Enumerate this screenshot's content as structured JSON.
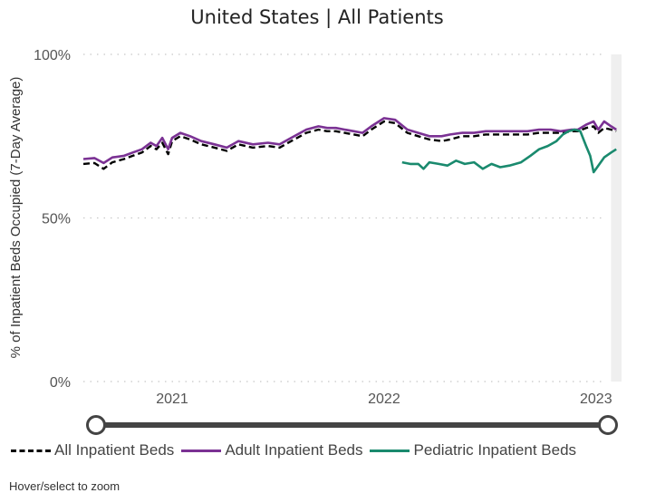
{
  "header": {
    "title": "United States | All Patients"
  },
  "chart_data": {
    "type": "line",
    "title": "United States | All Patients",
    "ylabel": "% of Inpatient Beds Occupied (7-Day Average)",
    "xlabel": "",
    "ylim": [
      0,
      100
    ],
    "xlim": [
      "2020-08-01",
      "2023-02-14"
    ],
    "y_ticks": [
      "0%",
      "50%",
      "100%"
    ],
    "x_ticks": [
      {
        "label": "2021",
        "date": "2021-01-01"
      },
      {
        "label": "2022",
        "date": "2022-01-01"
      },
      {
        "label": "2023",
        "date": "2023-01-01"
      }
    ],
    "grid": "horizontal dotted",
    "shaded_region": {
      "from": "2023-01-27",
      "to": "2023-02-14",
      "color": "#efefef"
    },
    "series": [
      {
        "name": "All Inpatient Beds",
        "color": "#000000",
        "style": "dashed",
        "points": [
          [
            "2020-08-01",
            66.5
          ],
          [
            "2020-08-20",
            66.8
          ],
          [
            "2020-09-05",
            65
          ],
          [
            "2020-09-20",
            67
          ],
          [
            "2020-10-10",
            68
          ],
          [
            "2020-10-25",
            69
          ],
          [
            "2020-11-10",
            70
          ],
          [
            "2020-11-25",
            72
          ],
          [
            "2020-12-05",
            71
          ],
          [
            "2020-12-15",
            73
          ],
          [
            "2020-12-25",
            69.5
          ],
          [
            "2021-01-01",
            73.5
          ],
          [
            "2021-01-15",
            75
          ],
          [
            "2021-02-01",
            74
          ],
          [
            "2021-02-20",
            72.5
          ],
          [
            "2021-03-15",
            71.5
          ],
          [
            "2021-04-05",
            70.5
          ],
          [
            "2021-04-25",
            72.5
          ],
          [
            "2021-05-20",
            71.5
          ],
          [
            "2021-06-15",
            72
          ],
          [
            "2021-07-05",
            71.5
          ],
          [
            "2021-07-25",
            73.5
          ],
          [
            "2021-08-20",
            76
          ],
          [
            "2021-09-10",
            77
          ],
          [
            "2021-09-25",
            76.5
          ],
          [
            "2021-10-10",
            76.5
          ],
          [
            "2021-10-25",
            76
          ],
          [
            "2021-11-10",
            75.5
          ],
          [
            "2021-11-25",
            75
          ],
          [
            "2021-12-10",
            77
          ],
          [
            "2022-01-01",
            79.5
          ],
          [
            "2022-01-20",
            79
          ],
          [
            "2022-02-10",
            76
          ],
          [
            "2022-03-01",
            75
          ],
          [
            "2022-03-20",
            74
          ],
          [
            "2022-04-10",
            73.5
          ],
          [
            "2022-04-25",
            74
          ],
          [
            "2022-05-15",
            75
          ],
          [
            "2022-06-05",
            75
          ],
          [
            "2022-06-25",
            75.5
          ],
          [
            "2022-07-20",
            75.5
          ],
          [
            "2022-08-15",
            75.5
          ],
          [
            "2022-09-05",
            75.5
          ],
          [
            "2022-09-25",
            76
          ],
          [
            "2022-10-15",
            76
          ],
          [
            "2022-11-01",
            76
          ],
          [
            "2022-11-20",
            76.5
          ],
          [
            "2022-12-01",
            76.5
          ],
          [
            "2022-12-15",
            77.5
          ],
          [
            "2022-12-28",
            78
          ],
          [
            "2023-01-05",
            76
          ],
          [
            "2023-01-15",
            77.5
          ],
          [
            "2023-01-27",
            77
          ],
          [
            "2023-02-05",
            76.5
          ]
        ]
      },
      {
        "name": "Adult Inpatient Beds",
        "color": "#7b3294",
        "style": "solid",
        "points": [
          [
            "2020-08-01",
            68
          ],
          [
            "2020-08-20",
            68.3
          ],
          [
            "2020-09-05",
            66.8
          ],
          [
            "2020-09-20",
            68.5
          ],
          [
            "2020-10-10",
            69
          ],
          [
            "2020-10-25",
            70
          ],
          [
            "2020-11-10",
            71
          ],
          [
            "2020-11-25",
            73
          ],
          [
            "2020-12-05",
            72
          ],
          [
            "2020-12-15",
            74.5
          ],
          [
            "2020-12-25",
            71
          ],
          [
            "2021-01-01",
            74.5
          ],
          [
            "2021-01-15",
            76
          ],
          [
            "2021-02-01",
            75
          ],
          [
            "2021-02-20",
            73.5
          ],
          [
            "2021-03-15",
            72.5
          ],
          [
            "2021-04-05",
            71.5
          ],
          [
            "2021-04-25",
            73.5
          ],
          [
            "2021-05-20",
            72.5
          ],
          [
            "2021-06-15",
            73
          ],
          [
            "2021-07-05",
            72.5
          ],
          [
            "2021-07-25",
            74.5
          ],
          [
            "2021-08-20",
            77
          ],
          [
            "2021-09-10",
            78
          ],
          [
            "2021-09-25",
            77.5
          ],
          [
            "2021-10-10",
            77.5
          ],
          [
            "2021-10-25",
            77
          ],
          [
            "2021-11-10",
            76.5
          ],
          [
            "2021-11-25",
            76
          ],
          [
            "2021-12-10",
            78
          ],
          [
            "2022-01-01",
            80.5
          ],
          [
            "2022-01-20",
            80
          ],
          [
            "2022-02-10",
            77
          ],
          [
            "2022-03-01",
            76
          ],
          [
            "2022-03-20",
            75
          ],
          [
            "2022-04-10",
            75
          ],
          [
            "2022-04-25",
            75.5
          ],
          [
            "2022-05-15",
            76
          ],
          [
            "2022-06-05",
            76
          ],
          [
            "2022-06-25",
            76.5
          ],
          [
            "2022-07-20",
            76.5
          ],
          [
            "2022-08-15",
            76.5
          ],
          [
            "2022-09-05",
            76.5
          ],
          [
            "2022-09-25",
            77
          ],
          [
            "2022-10-15",
            77
          ],
          [
            "2022-11-01",
            76.5
          ],
          [
            "2022-11-20",
            77
          ],
          [
            "2022-12-01",
            77
          ],
          [
            "2022-12-15",
            78.5
          ],
          [
            "2022-12-28",
            79.5
          ],
          [
            "2023-01-05",
            77
          ],
          [
            "2023-01-15",
            79.5
          ],
          [
            "2023-01-27",
            78
          ],
          [
            "2023-02-05",
            77
          ]
        ]
      },
      {
        "name": "Pediatric Inpatient Beds",
        "color": "#1a8a6e",
        "style": "solid",
        "points": [
          [
            "2022-02-01",
            67
          ],
          [
            "2022-02-15",
            66.5
          ],
          [
            "2022-03-01",
            66.5
          ],
          [
            "2022-03-10",
            65
          ],
          [
            "2022-03-20",
            67
          ],
          [
            "2022-04-05",
            66.5
          ],
          [
            "2022-04-20",
            66
          ],
          [
            "2022-05-05",
            67.5
          ],
          [
            "2022-05-20",
            66.5
          ],
          [
            "2022-06-05",
            67
          ],
          [
            "2022-06-20",
            65
          ],
          [
            "2022-07-05",
            66.5
          ],
          [
            "2022-07-20",
            65.5
          ],
          [
            "2022-08-05",
            66
          ],
          [
            "2022-08-25",
            67
          ],
          [
            "2022-09-10",
            69
          ],
          [
            "2022-09-25",
            71
          ],
          [
            "2022-10-10",
            72
          ],
          [
            "2022-10-25",
            73.5
          ],
          [
            "2022-11-05",
            75.5
          ],
          [
            "2022-11-15",
            76.5
          ],
          [
            "2022-11-25",
            77
          ],
          [
            "2022-12-05",
            76.5
          ],
          [
            "2022-12-15",
            72
          ],
          [
            "2022-12-22",
            69
          ],
          [
            "2022-12-28",
            64
          ],
          [
            "2023-01-05",
            66
          ],
          [
            "2023-01-15",
            68.5
          ],
          [
            "2023-01-27",
            70
          ],
          [
            "2023-02-05",
            71
          ]
        ]
      }
    ]
  },
  "slider": {
    "start_value": 0,
    "end_value": 1
  },
  "legend": {
    "items": [
      {
        "label": "All Inpatient Beds",
        "color": "#000000",
        "style": "dashed"
      },
      {
        "label": "Adult Inpatient Beds",
        "color": "#7b3294",
        "style": "solid"
      },
      {
        "label": "Pediatric Inpatient Beds",
        "color": "#1a8a6e",
        "style": "solid"
      }
    ]
  },
  "footnote": "Hover/select to zoom"
}
